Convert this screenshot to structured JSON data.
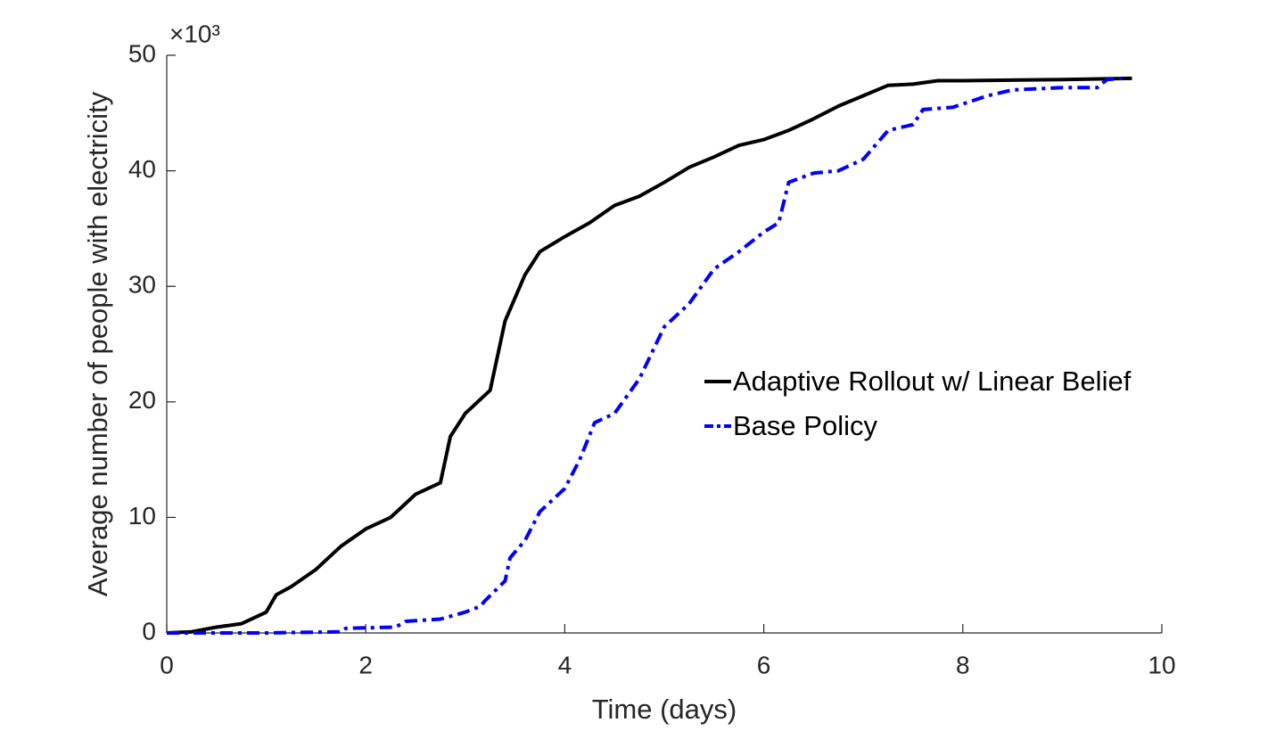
{
  "chart_data": {
    "type": "line",
    "xlabel": "Time (days)",
    "ylabel": "Average number of people with electricity",
    "y_exponent": "×10³",
    "xlim": [
      0,
      10
    ],
    "xticks": [
      0,
      2,
      4,
      6,
      8,
      10
    ],
    "ylim": [
      0,
      50
    ],
    "yticks": [
      0,
      10,
      20,
      30,
      40,
      50
    ],
    "grid": false,
    "legend": "right",
    "series": [
      {
        "name": "Adaptive Rollout w/ Linear Belief",
        "color": "#000000",
        "dash": "solid",
        "x": [
          0,
          0.25,
          0.5,
          0.75,
          1.0,
          1.1,
          1.25,
          1.5,
          1.75,
          2.0,
          2.25,
          2.5,
          2.75,
          2.85,
          3.0,
          3.25,
          3.4,
          3.6,
          3.75,
          4.0,
          4.25,
          4.5,
          4.75,
          5.0,
          5.25,
          5.5,
          5.75,
          6.0,
          6.25,
          6.5,
          6.75,
          7.0,
          7.25,
          7.5,
          7.75,
          8.0,
          9.0,
          9.7
        ],
        "values": [
          0,
          0.1,
          0.5,
          0.8,
          1.8,
          3.3,
          4,
          5.5,
          7.5,
          9,
          10,
          12,
          13,
          17,
          19,
          21,
          27,
          31,
          33,
          34.3,
          35.5,
          37,
          37.8,
          39,
          40.3,
          41.2,
          42.2,
          42.7,
          43.5,
          44.5,
          45.6,
          46.5,
          47.4,
          47.5,
          47.8,
          47.8,
          47.9,
          48.0
        ]
      },
      {
        "name": "Base Policy",
        "color": "#0000ff",
        "dash": "dashdot",
        "x": [
          0,
          1.0,
          1.75,
          1.8,
          2.3,
          2.4,
          2.75,
          3.0,
          3.15,
          3.2,
          3.4,
          3.45,
          3.6,
          3.75,
          4.0,
          4.15,
          4.3,
          4.5,
          4.75,
          5.0,
          5.25,
          5.5,
          5.75,
          6.0,
          6.15,
          6.25,
          6.5,
          6.75,
          7.0,
          7.25,
          7.5,
          7.6,
          7.9,
          8.25,
          8.5,
          9.0,
          9.35,
          9.45,
          9.6
        ],
        "values": [
          0,
          0,
          0.1,
          0.4,
          0.5,
          1.0,
          1.2,
          1.8,
          2.3,
          2.8,
          4.5,
          6.5,
          8,
          10.5,
          12.5,
          15,
          18.2,
          19,
          22,
          26.5,
          28.5,
          31.5,
          33,
          34.7,
          35.5,
          39,
          39.8,
          40,
          41,
          43.5,
          44,
          45.3,
          45.5,
          46.5,
          47,
          47.2,
          47.2,
          47.9,
          48.0
        ]
      }
    ]
  }
}
